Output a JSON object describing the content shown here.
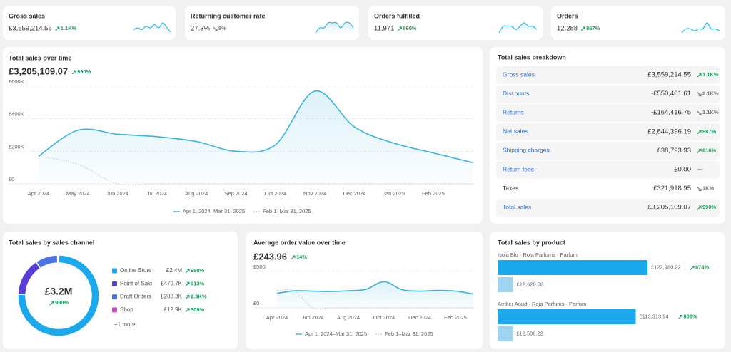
{
  "kpis": [
    {
      "title": "Gross sales",
      "value": "£3,559,214.55",
      "change": "1.1K%",
      "direction": "up",
      "spark": [
        5,
        6,
        5,
        7,
        6,
        8,
        6,
        9,
        6,
        3
      ]
    },
    {
      "title": "Returning customer rate",
      "value": "27.3%",
      "change": "8%",
      "direction": "down",
      "spark": [
        5,
        6,
        6,
        7,
        7,
        7,
        6,
        7,
        7,
        6
      ]
    },
    {
      "title": "Orders fulfilled",
      "value": "11,971",
      "change": "860%",
      "direction": "up",
      "spark": [
        4,
        6,
        6,
        6,
        5,
        6,
        7,
        6,
        6,
        5
      ]
    },
    {
      "title": "Orders",
      "value": "12,288",
      "change": "867%",
      "direction": "up",
      "spark": [
        4,
        6,
        6,
        5,
        6,
        6,
        9,
        6,
        6,
        5
      ]
    }
  ],
  "sales_over_time": {
    "type": "line",
    "title": "Total sales over time",
    "value": "£3,205,109.07",
    "change": "990%",
    "direction": "up",
    "categories": [
      "Apr 2024",
      "May 2024",
      "Jun 2024",
      "Jul 2024",
      "Aug 2024",
      "Sep 2024",
      "Oct 2024",
      "Nov 2024",
      "Dec 2024",
      "Jan 2025",
      "Feb 2025",
      null
    ],
    "ylim": [
      0,
      600000
    ],
    "yticks": [
      {
        "value": 0,
        "label": "£0"
      },
      {
        "value": 200000,
        "label": "£200K"
      },
      {
        "value": 400000,
        "label": "£400K"
      },
      {
        "value": 600000,
        "label": "£600K"
      }
    ],
    "series": [
      {
        "name": "Apr 1, 2024–Mar 31, 2025",
        "color": "#3bb3dc",
        "values": [
          170000,
          330000,
          305000,
          290000,
          260000,
          200000,
          240000,
          570000,
          350000,
          250000,
          190000,
          130000
        ]
      },
      {
        "name": "Feb 1–Mar 31, 2025",
        "color": "#c4c4c4",
        "values": [
          170000,
          120000,
          0,
          0,
          0,
          0,
          0,
          0,
          0,
          0,
          0,
          0
        ]
      }
    ]
  },
  "breakdown": {
    "title": "Total sales breakdown",
    "rows": [
      {
        "label": "Gross sales",
        "value": "£3,559,214.55",
        "change": "1.1K%",
        "direction": "up"
      },
      {
        "label": "Discounts",
        "value": "-£550,401.61",
        "change": "2.1K%",
        "direction": "down"
      },
      {
        "label": "Returns",
        "value": "-£164,416.75",
        "change": "1.1K%",
        "direction": "down"
      },
      {
        "label": "Net sales",
        "value": "£2,844,396.19",
        "change": "987%",
        "direction": "up"
      },
      {
        "label": "Shipping charges",
        "value": "£38,793.93",
        "change": "616%",
        "direction": "up"
      },
      {
        "label": "Return fees",
        "value": "£0.00",
        "change": "—",
        "direction": "none"
      },
      {
        "label": "Taxes",
        "value": "£321,918.95",
        "change": "1K%",
        "direction": "down"
      },
      {
        "label": "Total sales",
        "value": "£3,205,109.07",
        "change": "990%",
        "direction": "up"
      }
    ]
  },
  "sales_by_channel": {
    "type": "donut",
    "title": "Total sales by sales channel",
    "total": "£3.2M",
    "change": "990%",
    "direction": "up",
    "categories": [
      "Online Store",
      "Point of Sale",
      "Draft Orders",
      "Shop"
    ],
    "values": [
      2400000,
      479700,
      283300,
      12900
    ],
    "value_labels": [
      "£2.4M",
      "£479.7K",
      "£283.3K",
      "£12.9K"
    ],
    "changes": [
      "950%",
      "913%",
      "2.3K%",
      "309%"
    ],
    "colors": [
      "#1ba8ec",
      "#5a3cd6",
      "#4d74e4",
      "#c848c4"
    ],
    "more": "+1 more"
  },
  "aov": {
    "type": "line",
    "title": "Average order value over time",
    "value": "£243.96",
    "change": "14%",
    "direction": "up",
    "categories": [
      "Apr 2024",
      null,
      "Jun 2024",
      null,
      "Aug 2024",
      null,
      "Oct 2024",
      null,
      "Dec 2024",
      null,
      "Feb 2025",
      null
    ],
    "ylim": [
      0,
      500
    ],
    "yticks": [
      {
        "value": 0,
        "label": "£0"
      },
      {
        "value": 500,
        "label": "£500"
      }
    ],
    "series": [
      {
        "name": "Apr 1, 2024–Mar 31, 2025",
        "color": "#3bb3dc",
        "values": [
          200,
          235,
          230,
          225,
          235,
          255,
          360,
          250,
          230,
          240,
          230,
          190
        ]
      },
      {
        "name": "Feb 1–Mar 31, 2025",
        "color": "#c4c4c4",
        "values": [
          240,
          230,
          0,
          0,
          0,
          0,
          0,
          0,
          0,
          0,
          0,
          0
        ]
      }
    ]
  },
  "sales_by_product": {
    "type": "bar",
    "title": "Total sales by product",
    "products": [
      {
        "name": "Isola Blu · Roja Parfums · Parfum",
        "values": [
          122980.92,
          12620.58
        ],
        "value_labels": [
          "£122,980.92",
          "£12,620.58"
        ],
        "change": "874%",
        "direction": "up"
      },
      {
        "name": "Amber Aoud · Roja Parfums · Parfum",
        "values": [
          113313.94,
          12506.22
        ],
        "value_labels": [
          "£113,313.94",
          "£12,506.22"
        ],
        "change": "806%",
        "direction": "up"
      }
    ],
    "colors": [
      "#1ba8ec",
      "#9fd3f0"
    ]
  }
}
